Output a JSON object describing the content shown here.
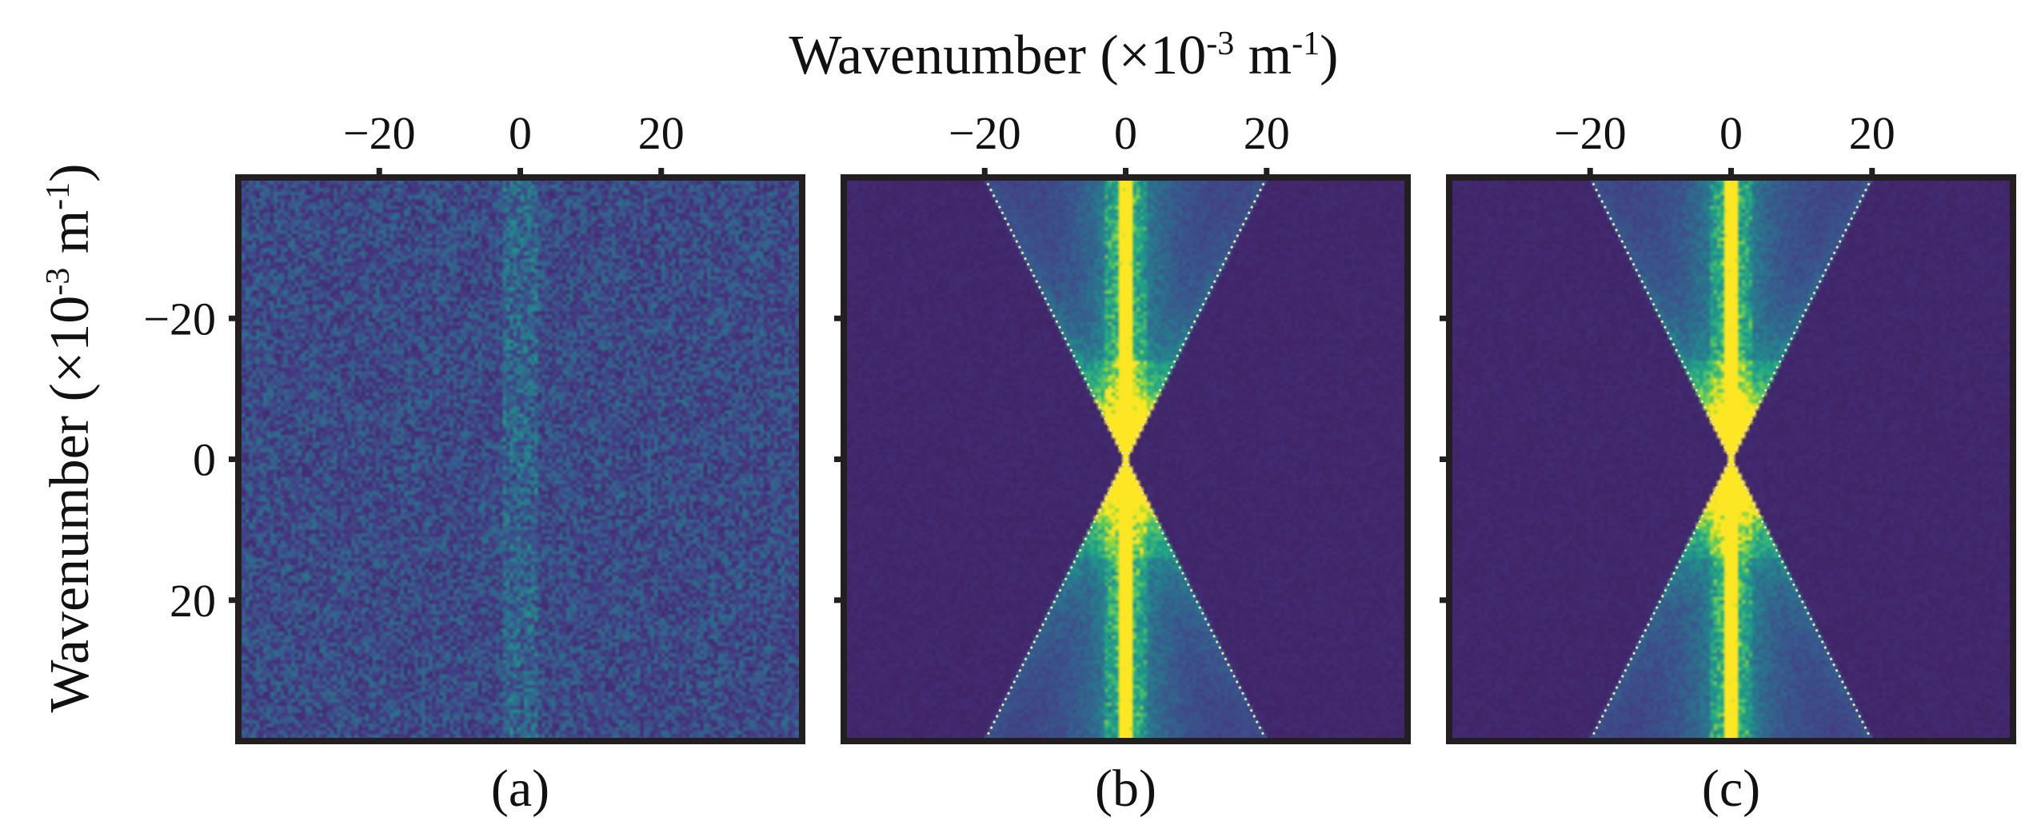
{
  "chart_data": {
    "type": "heatmap",
    "x_axis_title": "Wavenumber (×10",
    "x_axis_exp": "-3",
    "x_axis_unit": " m",
    "x_axis_unit_exp": "-1",
    "x_axis_close": ")",
    "y_axis_title": "Wavenumber (×10",
    "y_axis_exp": "-3",
    "y_axis_unit": " m",
    "y_axis_unit_exp": "-1",
    "y_axis_close": ")",
    "xlim": [
      -40,
      40
    ],
    "ylim": [
      -40,
      40
    ],
    "x_ticks": [
      -20,
      0,
      20
    ],
    "x_tick_labels": [
      "−20",
      "0",
      "20"
    ],
    "y_ticks": [
      -20,
      0,
      20
    ],
    "y_tick_labels": [
      "−20",
      "0",
      "20"
    ],
    "y_axis_inverted": true,
    "grid": false,
    "colormap": [
      "#3e1f5c",
      "#463480",
      "#3b528b",
      "#2c728e",
      "#21918c",
      "#27ad81",
      "#5ec962",
      "#aadc32",
      "#fde725"
    ],
    "panels": [
      {
        "label": "(a)",
        "pattern": "noise",
        "cone_slope": null
      },
      {
        "label": "(b)",
        "pattern": "cone",
        "cone_slope": 2.0
      },
      {
        "label": "(c)",
        "pattern": "cone",
        "cone_slope": 2.0
      }
    ]
  }
}
